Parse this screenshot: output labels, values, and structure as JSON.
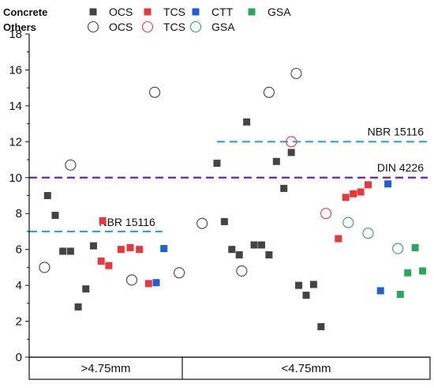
{
  "chart_data": {
    "type": "scatter",
    "ylim": [
      0,
      18
    ],
    "y_ticks": [
      "0",
      "2",
      "4",
      "6",
      "8",
      "10",
      "12",
      "14",
      "16",
      "18"
    ],
    "categories": [
      ">4.75mm",
      "<4.75mm"
    ],
    "grid": false,
    "legend_placement": "top-left",
    "legend": {
      "rows": [
        {
          "label": "Concrete",
          "entries": [
            {
              "name": "OCS",
              "marker": "filled-square",
              "color": "#444444"
            },
            {
              "name": "TCS",
              "marker": "filled-square",
              "color": "#e8383d"
            },
            {
              "name": "CTT",
              "marker": "filled-square",
              "color": "#1f5fd6"
            },
            {
              "name": "GSA",
              "marker": "filled-square",
              "color": "#27a85a"
            }
          ]
        },
        {
          "label": "Others",
          "entries": [
            {
              "name": "OCS",
              "marker": "open-circle",
              "color": "#444444"
            },
            {
              "name": "TCS",
              "marker": "open-circle",
              "color": "#e8383d"
            },
            {
              "name": "GSA",
              "marker": "open-circle",
              "color": "#27a85a"
            }
          ]
        }
      ]
    },
    "reference_lines": [
      {
        "label": "NBR 15116",
        "y": 7.0,
        "color": "#29a3e0",
        "group": ">4.75mm"
      },
      {
        "label": "NBR 15116",
        "y": 12.0,
        "color": "#29a3e0",
        "group": "<4.75mm"
      },
      {
        "label": "DIN 4226",
        "y": 10.0,
        "color": "#6a1fb8",
        "group": "all"
      }
    ],
    "series": [
      {
        "name": "Concrete OCS",
        "marker": "filled-square",
        "color": "#444444",
        "points": [
          {
            "group": ">4.75mm",
            "x": 0.12,
            "y": 9.0
          },
          {
            "group": ">4.75mm",
            "x": 0.17,
            "y": 7.9
          },
          {
            "group": ">4.75mm",
            "x": 0.22,
            "y": 5.9
          },
          {
            "group": ">4.75mm",
            "x": 0.27,
            "y": 5.9
          },
          {
            "group": ">4.75mm",
            "x": 0.32,
            "y": 2.8
          },
          {
            "group": ">4.75mm",
            "x": 0.37,
            "y": 3.8
          },
          {
            "group": ">4.75mm",
            "x": 0.42,
            "y": 6.2
          },
          {
            "group": "<4.75mm",
            "x": 0.14,
            "y": 10.8
          },
          {
            "group": "<4.75mm",
            "x": 0.17,
            "y": 7.55
          },
          {
            "group": "<4.75mm",
            "x": 0.2,
            "y": 6.0
          },
          {
            "group": "<4.75mm",
            "x": 0.23,
            "y": 5.7
          },
          {
            "group": "<4.75mm",
            "x": 0.26,
            "y": 13.1
          },
          {
            "group": "<4.75mm",
            "x": 0.29,
            "y": 6.25
          },
          {
            "group": "<4.75mm",
            "x": 0.32,
            "y": 6.25
          },
          {
            "group": "<4.75mm",
            "x": 0.35,
            "y": 5.7
          },
          {
            "group": "<4.75mm",
            "x": 0.38,
            "y": 10.9
          },
          {
            "group": "<4.75mm",
            "x": 0.41,
            "y": 9.4
          },
          {
            "group": "<4.75mm",
            "x": 0.44,
            "y": 11.4
          },
          {
            "group": "<4.75mm",
            "x": 0.47,
            "y": 4.0
          },
          {
            "group": "<4.75mm",
            "x": 0.5,
            "y": 3.45
          },
          {
            "group": "<4.75mm",
            "x": 0.53,
            "y": 4.05
          },
          {
            "group": "<4.75mm",
            "x": 0.56,
            "y": 1.7
          }
        ]
      },
      {
        "name": "Concrete TCS",
        "marker": "filled-square",
        "color": "#e8383d",
        "points": [
          {
            "group": ">4.75mm",
            "x": 0.48,
            "y": 7.6
          },
          {
            "group": ">4.75mm",
            "x": 0.47,
            "y": 5.35
          },
          {
            "group": ">4.75mm",
            "x": 0.52,
            "y": 5.1
          },
          {
            "group": ">4.75mm",
            "x": 0.6,
            "y": 6.0
          },
          {
            "group": ">4.75mm",
            "x": 0.66,
            "y": 6.1
          },
          {
            "group": ">4.75mm",
            "x": 0.72,
            "y": 6.0
          },
          {
            "group": ">4.75mm",
            "x": 0.78,
            "y": 4.1
          },
          {
            "group": "<4.75mm",
            "x": 0.63,
            "y": 6.6
          },
          {
            "group": "<4.75mm",
            "x": 0.66,
            "y": 8.9
          },
          {
            "group": "<4.75mm",
            "x": 0.69,
            "y": 9.1
          },
          {
            "group": "<4.75mm",
            "x": 0.72,
            "y": 9.2
          },
          {
            "group": "<4.75mm",
            "x": 0.75,
            "y": 9.6
          }
        ]
      },
      {
        "name": "Concrete CTT",
        "marker": "filled-square",
        "color": "#1f5fd6",
        "points": [
          {
            "group": ">4.75mm",
            "x": 0.83,
            "y": 4.15
          },
          {
            "group": ">4.75mm",
            "x": 0.88,
            "y": 6.05
          },
          {
            "group": "<4.75mm",
            "x": 0.8,
            "y": 3.7
          },
          {
            "group": "<4.75mm",
            "x": 0.83,
            "y": 9.65
          }
        ]
      },
      {
        "name": "Concrete GSA",
        "marker": "filled-square",
        "color": "#27a85a",
        "points": [
          {
            "group": "<4.75mm",
            "x": 0.88,
            "y": 3.5
          },
          {
            "group": "<4.75mm",
            "x": 0.91,
            "y": 4.7
          },
          {
            "group": "<4.75mm",
            "x": 0.94,
            "y": 6.1
          },
          {
            "group": "<4.75mm",
            "x": 0.97,
            "y": 4.8
          }
        ]
      },
      {
        "name": "Others OCS",
        "marker": "open-circle",
        "color": "#444444",
        "points": [
          {
            "group": ">4.75mm",
            "x": 0.1,
            "y": 5.0
          },
          {
            "group": ">4.75mm",
            "x": 0.27,
            "y": 10.7
          },
          {
            "group": ">4.75mm",
            "x": 0.67,
            "y": 4.3
          },
          {
            "group": ">4.75mm",
            "x": 0.82,
            "y": 14.75
          },
          {
            "group": ">4.75mm",
            "x": 0.98,
            "y": 4.7
          },
          {
            "group": "<4.75mm",
            "x": 0.08,
            "y": 7.45
          },
          {
            "group": "<4.75mm",
            "x": 0.24,
            "y": 4.8
          },
          {
            "group": "<4.75mm",
            "x": 0.35,
            "y": 14.75
          },
          {
            "group": "<4.75mm",
            "x": 0.46,
            "y": 15.8
          }
        ]
      },
      {
        "name": "Others TCS",
        "marker": "open-circle",
        "color": "#e8383d",
        "points": [
          {
            "group": "<4.75mm",
            "x": 0.44,
            "y": 12.0
          },
          {
            "group": "<4.75mm",
            "x": 0.58,
            "y": 8.0
          }
        ]
      },
      {
        "name": "Others GSA",
        "marker": "open-circle",
        "color": "#27a85a",
        "points": [
          {
            "group": "<4.75mm",
            "x": 0.67,
            "y": 7.5
          },
          {
            "group": "<4.75mm",
            "x": 0.75,
            "y": 6.9
          },
          {
            "group": "<4.75mm",
            "x": 0.87,
            "y": 6.05
          }
        ]
      }
    ]
  }
}
